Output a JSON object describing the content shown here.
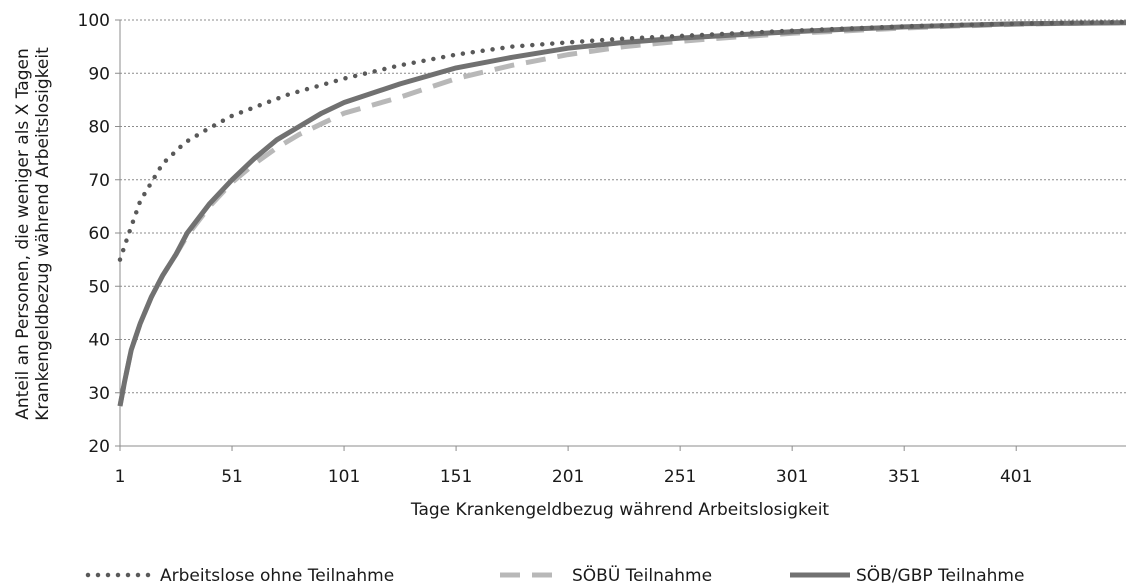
{
  "chart_data": {
    "type": "line",
    "title": "",
    "xlabel": "Tage Krankengeldbezug während Arbeitslosigkeit",
    "ylabel_lines": [
      "Anteil an Personen, die weniger als X Tagen",
      "Krankengeldbezug während Arbeitslosigkeit"
    ],
    "xlim": [
      1,
      450
    ],
    "ylim": [
      20,
      100
    ],
    "xticks": [
      1,
      51,
      101,
      151,
      201,
      251,
      301,
      351,
      401
    ],
    "yticks": [
      20,
      30,
      40,
      50,
      60,
      70,
      80,
      90,
      100
    ],
    "grid": "horizontal-dotted",
    "legend_position": "bottom",
    "series": [
      {
        "name": "Arbeitslose ohne Teilnahme",
        "style": "dotted",
        "color": "#595959",
        "points": [
          [
            1,
            55
          ],
          [
            5,
            60
          ],
          [
            10,
            66
          ],
          [
            20,
            73
          ],
          [
            30,
            77
          ],
          [
            40,
            79.5
          ],
          [
            51,
            82
          ],
          [
            76,
            86
          ],
          [
            101,
            89
          ],
          [
            126,
            91.5
          ],
          [
            151,
            93.5
          ],
          [
            176,
            95
          ],
          [
            201,
            95.8
          ],
          [
            226,
            96.5
          ],
          [
            251,
            97
          ],
          [
            276,
            97.5
          ],
          [
            301,
            98
          ],
          [
            326,
            98.4
          ],
          [
            351,
            98.8
          ],
          [
            376,
            99.1
          ],
          [
            401,
            99.3
          ],
          [
            426,
            99.5
          ],
          [
            450,
            99.6
          ]
        ]
      },
      {
        "name": "SÖBÜ Teilnahme",
        "style": "dashed",
        "color": "#b8b8b8",
        "points": [
          [
            1,
            27.5
          ],
          [
            3,
            32
          ],
          [
            6,
            38
          ],
          [
            10,
            43
          ],
          [
            15,
            48
          ],
          [
            20,
            52
          ],
          [
            26,
            56
          ],
          [
            31,
            59.5
          ],
          [
            41,
            65
          ],
          [
            51,
            69.5
          ],
          [
            61,
            73
          ],
          [
            71,
            76
          ],
          [
            81,
            78.5
          ],
          [
            91,
            80.5
          ],
          [
            101,
            82.5
          ],
          [
            126,
            85.5
          ],
          [
            151,
            89
          ],
          [
            176,
            91.5
          ],
          [
            201,
            93.5
          ],
          [
            226,
            95
          ],
          [
            251,
            96
          ],
          [
            276,
            96.8
          ],
          [
            301,
            97.5
          ],
          [
            326,
            98
          ],
          [
            351,
            98.5
          ],
          [
            376,
            98.9
          ],
          [
            401,
            99.2
          ],
          [
            426,
            99.4
          ],
          [
            450,
            99.5
          ]
        ]
      },
      {
        "name": "SÖB/GBP Teilnahme",
        "style": "solid",
        "color": "#717171",
        "points": [
          [
            1,
            27.5
          ],
          [
            3,
            32
          ],
          [
            6,
            38
          ],
          [
            10,
            43
          ],
          [
            15,
            48
          ],
          [
            20,
            52
          ],
          [
            26,
            56
          ],
          [
            31,
            60
          ],
          [
            41,
            65.5
          ],
          [
            51,
            70
          ],
          [
            61,
            74
          ],
          [
            71,
            77.5
          ],
          [
            81,
            80
          ],
          [
            91,
            82.5
          ],
          [
            101,
            84.5
          ],
          [
            126,
            88
          ],
          [
            151,
            91
          ],
          [
            176,
            93
          ],
          [
            201,
            94.7
          ],
          [
            226,
            95.8
          ],
          [
            251,
            96.6
          ],
          [
            276,
            97.2
          ],
          [
            301,
            97.8
          ],
          [
            326,
            98.3
          ],
          [
            351,
            98.7
          ],
          [
            376,
            99
          ],
          [
            401,
            99.3
          ],
          [
            426,
            99.4
          ],
          [
            450,
            99.5
          ]
        ]
      }
    ]
  }
}
